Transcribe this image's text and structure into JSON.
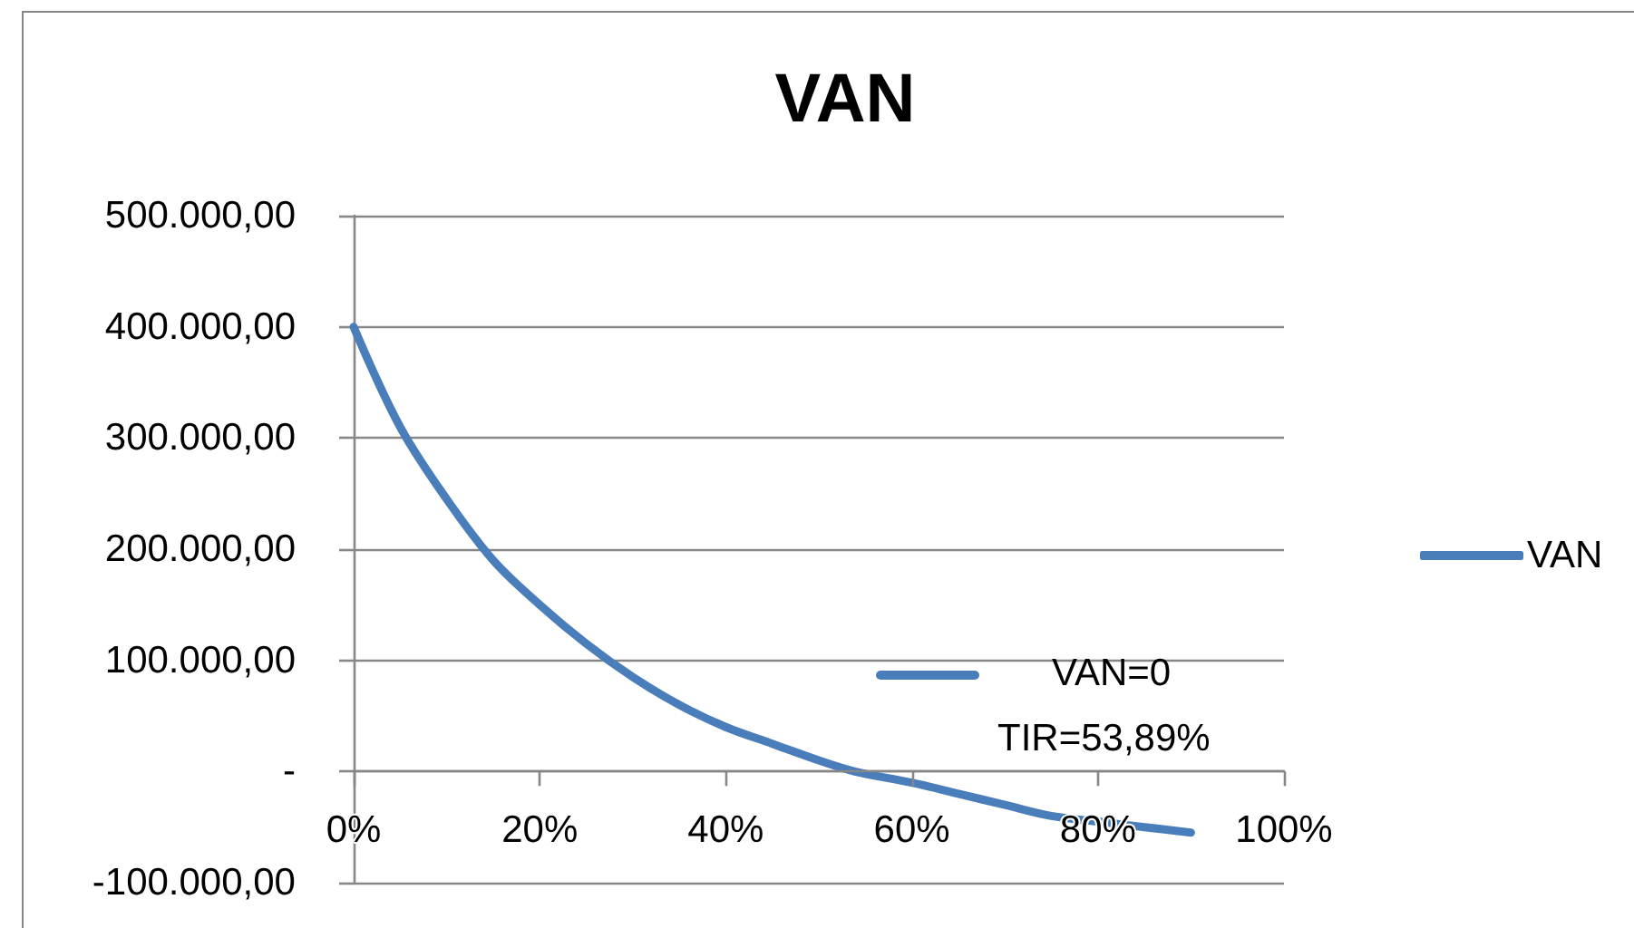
{
  "chart_data": {
    "type": "line",
    "title": "VAN",
    "x": [
      0,
      5,
      10,
      15,
      20,
      25,
      30,
      35,
      40,
      45,
      50,
      53.89,
      60,
      65,
      70,
      75,
      80,
      85,
      90
    ],
    "series": [
      {
        "name": "VAN",
        "color": "#4a7ebb",
        "values": [
          400000,
          310000,
          245000,
          190000,
          150000,
          115000,
          85000,
          60000,
          40000,
          25000,
          10000,
          0,
          -10000,
          -20000,
          -30000,
          -40000,
          -45000,
          -50000,
          -55000
        ]
      }
    ],
    "xlim": [
      0,
      100
    ],
    "xticks": [
      {
        "value": 0,
        "label": "0%"
      },
      {
        "value": 20,
        "label": "20%"
      },
      {
        "value": 40,
        "label": "40%"
      },
      {
        "value": 60,
        "label": "60%"
      },
      {
        "value": 80,
        "label": "80%"
      },
      {
        "value": 100,
        "label": "100%"
      }
    ],
    "ylim": [
      -100000,
      500000
    ],
    "yticks": [
      {
        "value": -100000,
        "label": "-100.000,00"
      },
      {
        "value": 0,
        "label": "-"
      },
      {
        "value": 100000,
        "label": "100.000,00"
      },
      {
        "value": 200000,
        "label": "200.000,00"
      },
      {
        "value": 300000,
        "label": "300.000,00"
      },
      {
        "value": 400000,
        "label": "400.000,00"
      },
      {
        "value": 500000,
        "label": "500.000,00"
      }
    ],
    "grid": "y",
    "legend": "right",
    "marker": "none",
    "line_style": "solid",
    "annotations": [
      "VAN=0",
      "TIR=53,89%"
    ]
  }
}
